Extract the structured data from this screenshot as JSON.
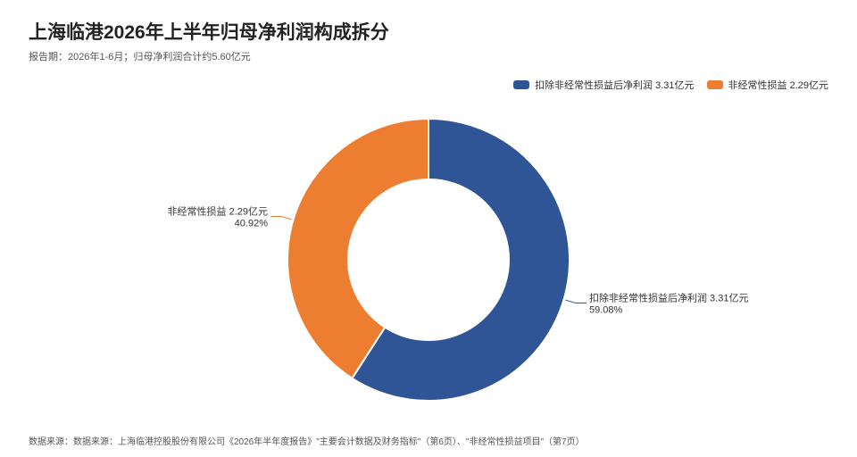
{
  "title": "上海临港2026年上半年归母净利润构成拆分",
  "subtitle": "报告期：2026年1-6月；归母净利润合计约5.60亿元",
  "source": "数据来源：数据来源：上海临港控股股份有限公司《2026年半年度报告》\"主要会计数据及财务指标\"（第6页）、\"非经常性损益项目\"（第7页）",
  "colors": {
    "series_1": "#2f5597",
    "series_2": "#ed7d31"
  },
  "chart_data": {
    "type": "pie",
    "variant": "donut",
    "title": "上海临港2026年上半年归母净利润构成拆分",
    "subtitle": "报告期：2026年1-6月；归母净利润合计约5.60亿元",
    "legend_position": "top-right",
    "slices": [
      {
        "name": "扣除非经常性损益后净利润",
        "value": 3.31,
        "unit": "亿元",
        "percent": 59.08,
        "label": "扣除非经常性损益后净利润 3.31亿元",
        "percent_label": "59.08%",
        "color": "#2f5597"
      },
      {
        "name": "非经常性损益",
        "value": 2.29,
        "unit": "亿元",
        "percent": 40.92,
        "label": "非经常性损益 2.29亿元",
        "percent_label": "40.92%",
        "color": "#ed7d31"
      }
    ]
  }
}
